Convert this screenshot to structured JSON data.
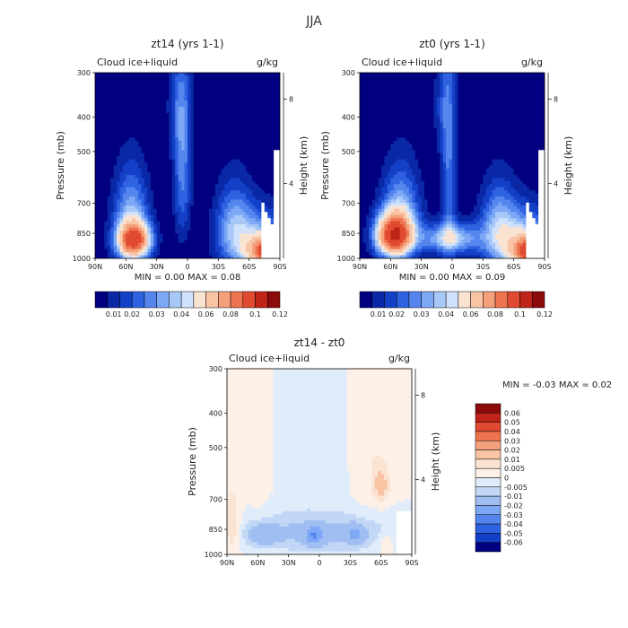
{
  "figure": {
    "title": "JJA"
  },
  "chart_data": [
    {
      "type": "heatmap",
      "title": "zt14 (yrs 1-1)",
      "variable": "Cloud ice+liquid",
      "units": "g/kg",
      "ylabel": "Pressure (mb)",
      "ylabel_right": "Height (km)",
      "x_ticks": [
        "90N",
        "60N",
        "30N",
        "0",
        "30S",
        "60S",
        "90S"
      ],
      "y_ticks": [
        "300",
        "400",
        "500",
        "700",
        "850",
        "1000"
      ],
      "height_ticks": [
        "8",
        "4"
      ],
      "stats": {
        "min_label": "MIN =",
        "min": "0.00",
        "max_label": "MAX =",
        "max": "0.08"
      },
      "colorbar_labels": [
        "0.01",
        "0.02",
        "0.03",
        "0.04",
        "0.06",
        "0.08",
        "0.1",
        "0.12"
      ],
      "colors": [
        "#000080",
        "#0a28a6",
        "#1440c8",
        "#2e62e0",
        "#5586ee",
        "#7ca8f5",
        "#a8c8f8",
        "#d0e2fb",
        "#fbe3d2",
        "#f8c4a4",
        "#f4a07a",
        "#ee7450",
        "#e04a30",
        "#c02418",
        "#8c0a0a"
      ],
      "blobs": [
        {
          "lat": -80,
          "p": 960,
          "wx": 14,
          "wp": 70,
          "amp": 0.08
        },
        {
          "lat": -65,
          "p": 880,
          "wx": 22,
          "wp": 130,
          "amp": 0.025
        },
        {
          "lat": -45,
          "p": 800,
          "wx": 12,
          "wp": 160,
          "amp": 0.02
        },
        {
          "lat": 5,
          "p": 560,
          "wx": 6,
          "wp": 200,
          "amp": 0.022
        },
        {
          "lat": 8,
          "p": 370,
          "wx": 8,
          "wp": 90,
          "amp": 0.012
        },
        {
          "lat": 52,
          "p": 890,
          "wx": 11,
          "wp": 70,
          "amp": 0.075
        },
        {
          "lat": 55,
          "p": 780,
          "wx": 12,
          "wp": 170,
          "amp": 0.03
        }
      ]
    },
    {
      "type": "heatmap",
      "title": "zt0 (yrs 1-1)",
      "variable": "Cloud ice+liquid",
      "units": "g/kg",
      "ylabel": "Pressure (mb)",
      "ylabel_right": "Height (km)",
      "x_ticks": [
        "90N",
        "60N",
        "30N",
        "0",
        "30S",
        "60S",
        "90S"
      ],
      "y_ticks": [
        "300",
        "400",
        "500",
        "700",
        "850",
        "1000"
      ],
      "height_ticks": [
        "8",
        "4"
      ],
      "stats": {
        "min_label": "MIN =",
        "min": "0.00",
        "max_label": "MAX =",
        "max": "0.09"
      },
      "colorbar_labels": [
        "0.01",
        "0.02",
        "0.03",
        "0.04",
        "0.06",
        "0.08",
        "0.1",
        "0.12"
      ],
      "colors": [
        "#000080",
        "#0a28a6",
        "#1440c8",
        "#2e62e0",
        "#5586ee",
        "#7ca8f5",
        "#a8c8f8",
        "#d0e2fb",
        "#fbe3d2",
        "#f8c4a4",
        "#f4a07a",
        "#ee7450",
        "#e04a30",
        "#c02418",
        "#8c0a0a"
      ],
      "blobs": [
        {
          "lat": -80,
          "p": 960,
          "wx": 14,
          "wp": 70,
          "amp": 0.085
        },
        {
          "lat": -65,
          "p": 880,
          "wx": 22,
          "wp": 130,
          "amp": 0.03
        },
        {
          "lat": -45,
          "p": 800,
          "wx": 12,
          "wp": 160,
          "amp": 0.02
        },
        {
          "lat": 3,
          "p": 600,
          "wx": 5,
          "wp": 250,
          "amp": 0.02
        },
        {
          "lat": 2,
          "p": 880,
          "wx": 20,
          "wp": 60,
          "amp": 0.035
        },
        {
          "lat": 8,
          "p": 370,
          "wx": 7,
          "wp": 90,
          "amp": 0.012
        },
        {
          "lat": 57,
          "p": 860,
          "wx": 12,
          "wp": 80,
          "amp": 0.085
        },
        {
          "lat": 50,
          "p": 760,
          "wx": 13,
          "wp": 160,
          "amp": 0.03
        }
      ]
    },
    {
      "type": "heatmap",
      "title": "zt14 - zt0",
      "variable": "Cloud ice+liquid",
      "units": "g/kg",
      "ylabel": "Pressure (mb)",
      "ylabel_right": "Height (km)",
      "x_ticks": [
        "90N",
        "60N",
        "30N",
        "0",
        "30S",
        "60S",
        "90S"
      ],
      "y_ticks": [
        "300",
        "400",
        "500",
        "700",
        "850",
        "1000"
      ],
      "height_ticks": [
        "8",
        "4"
      ],
      "stats": {
        "min_label": "MIN =",
        "min": "-0.03",
        "max_label": "MAX =",
        "max": "0.02"
      },
      "colorbar_labels": [
        "0.06",
        "0.05",
        "0.04",
        "0.03",
        "0.02",
        "0.01",
        "0.005",
        "0",
        "-0.005",
        "-0.01",
        "-0.02",
        "-0.03",
        "-0.04",
        "-0.05",
        "-0.06"
      ],
      "colors": [
        "#8c0a0a",
        "#c02418",
        "#e04a30",
        "#ee7450",
        "#f4a07a",
        "#f8c4a4",
        "#fbe3d2",
        "#fdf0e6",
        "#e0ecfa",
        "#c2d6f6",
        "#a0bef2",
        "#7ca8f5",
        "#5586ee",
        "#2e62e0",
        "#1440c8",
        "#000080"
      ],
      "blobs": [
        {
          "lat": 0,
          "p": 870,
          "wx": 60,
          "wp": 80,
          "amp": -0.012
        },
        {
          "lat": 5,
          "p": 885,
          "wx": 6,
          "wp": 40,
          "amp": -0.02
        },
        {
          "lat": -35,
          "p": 880,
          "wx": 6,
          "wp": 40,
          "amp": -0.015
        },
        {
          "lat": 55,
          "p": 880,
          "wx": 10,
          "wp": 40,
          "amp": -0.012
        },
        {
          "lat": 85,
          "p": 830,
          "wx": 6,
          "wp": 120,
          "amp": 0.012
        },
        {
          "lat": -60,
          "p": 640,
          "wx": 5,
          "wp": 50,
          "amp": 0.012
        },
        {
          "lat": -65,
          "p": 930,
          "wx": 6,
          "wp": 50,
          "amp": 0.008
        },
        {
          "lat": 30,
          "p": 450,
          "wx": 8,
          "wp": 200,
          "amp": -0.004
        },
        {
          "lat": 10,
          "p": 450,
          "wx": 5,
          "wp": 200,
          "amp": -0.004
        },
        {
          "lat": -20,
          "p": 450,
          "wx": 10,
          "wp": 200,
          "amp": -0.004
        },
        {
          "lat": 60,
          "p": 450,
          "wx": 8,
          "wp": 200,
          "amp": 0.005
        },
        {
          "lat": -50,
          "p": 450,
          "wx": 20,
          "wp": 200,
          "amp": 0.005
        }
      ]
    }
  ]
}
